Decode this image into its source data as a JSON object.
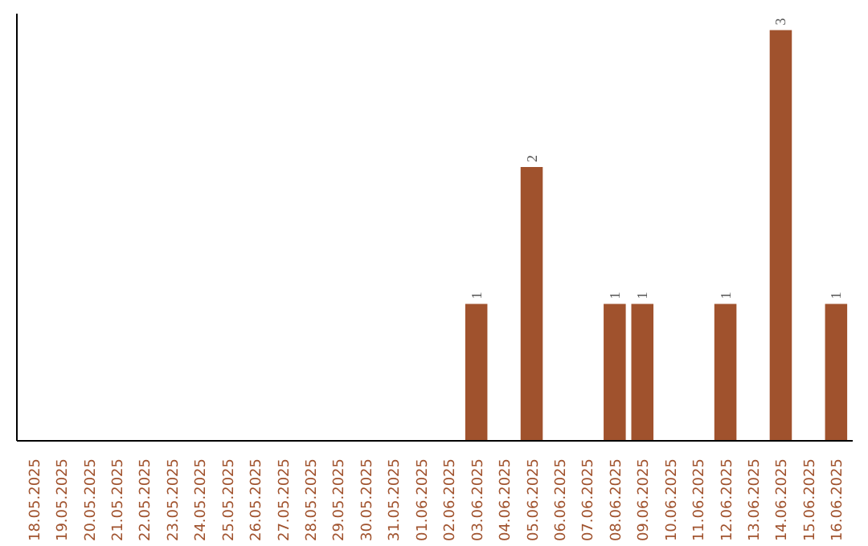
{
  "chart_data": {
    "type": "bar",
    "categories": [
      "18.05.2025",
      "19.05.2025",
      "20.05.2025",
      "21.05.2025",
      "22.05.2025",
      "23.05.2025",
      "24.05.2025",
      "25.05.2025",
      "26.05.2025",
      "27.05.2025",
      "28.05.2025",
      "29.05.2025",
      "30.05.2025",
      "31.05.2025",
      "01.06.2025",
      "02.06.2025",
      "03.06.2025",
      "04.06.2025",
      "05.06.2025",
      "06.06.2025",
      "07.06.2025",
      "08.06.2025",
      "09.06.2025",
      "10.06.2025",
      "11.06.2025",
      "12.06.2025",
      "13.06.2025",
      "14.06.2025",
      "15.06.2025",
      "16.06.2025"
    ],
    "values": [
      null,
      null,
      null,
      null,
      null,
      null,
      null,
      null,
      null,
      null,
      null,
      null,
      null,
      null,
      null,
      null,
      1,
      null,
      2,
      null,
      null,
      1,
      1,
      null,
      null,
      1,
      null,
      3,
      null,
      1
    ],
    "value_labels": [
      null,
      null,
      null,
      null,
      null,
      null,
      null,
      null,
      null,
      null,
      null,
      null,
      null,
      null,
      null,
      null,
      "1",
      null,
      "2",
      null,
      null,
      "1",
      "1",
      null,
      null,
      "1",
      null,
      "3",
      null,
      "1"
    ],
    "color": "#a0522d",
    "ylim": [
      0,
      3.12
    ],
    "tick_labels": "x",
    "grid": false
  }
}
